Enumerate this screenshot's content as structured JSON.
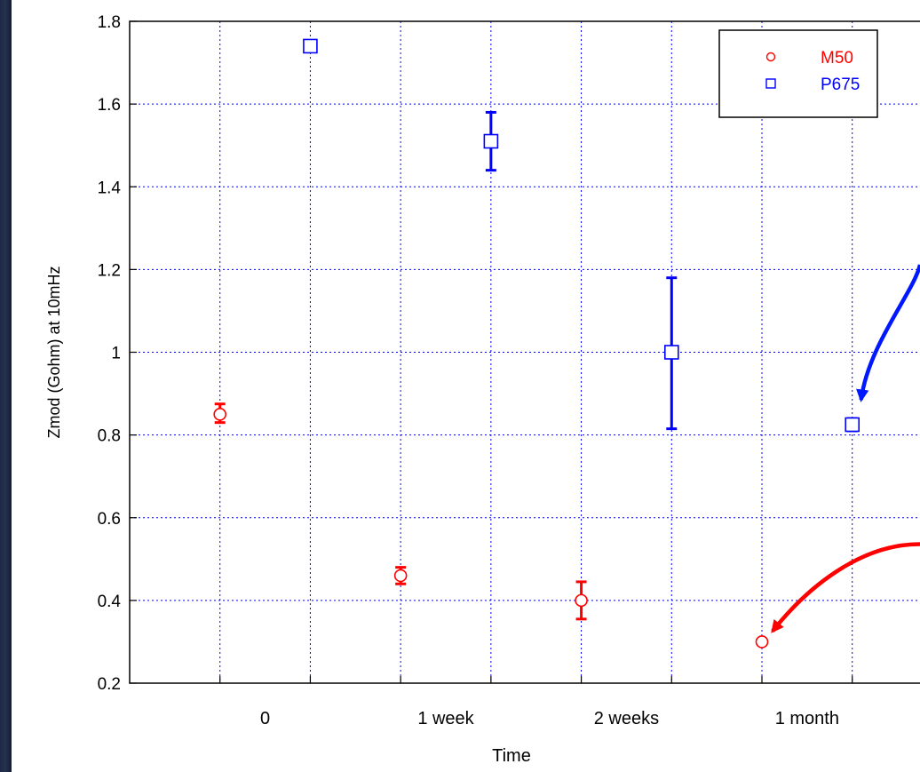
{
  "chart_data": {
    "type": "scatter",
    "xlabel": "Time",
    "ylabel": "Zmod (Gohm) at 10mHz",
    "ylim": [
      0.2,
      1.8
    ],
    "xlim": [
      -1,
      7.75
    ],
    "yticks": [
      0.2,
      0.4,
      0.6,
      0.8,
      1,
      1.2,
      1.4,
      1.6,
      1.8
    ],
    "ytick_labels": [
      "0.2",
      "0.4",
      "0.6",
      "0.8",
      "1",
      "1.2",
      "1.4",
      "1.6",
      "1.8"
    ],
    "x_gridlines": [
      0,
      1,
      2,
      3,
      4,
      5,
      6,
      7
    ],
    "x_tick_labels": [
      {
        "x": 0.5,
        "label": "0"
      },
      {
        "x": 2.5,
        "label": "1 week"
      },
      {
        "x": 4.5,
        "label": "2 weeks"
      },
      {
        "x": 6.5,
        "label": "1 month"
      }
    ],
    "grid": true,
    "legend_position": "top-right",
    "series": [
      {
        "name": "M50",
        "marker": "circle",
        "color": "#ff0000",
        "points": [
          {
            "x": 0,
            "y": 0.85,
            "err_low": 0.83,
            "err_high": 0.875
          },
          {
            "x": 2,
            "y": 0.46,
            "err_low": 0.44,
            "err_high": 0.48
          },
          {
            "x": 4,
            "y": 0.4,
            "err_low": 0.355,
            "err_high": 0.445
          },
          {
            "x": 6,
            "y": 0.3,
            "err_low": 0.3,
            "err_high": 0.3
          }
        ]
      },
      {
        "name": "P675",
        "marker": "square",
        "color": "#0000ff",
        "points": [
          {
            "x": 1,
            "y": 1.74,
            "err_low": 1.74,
            "err_high": 1.74
          },
          {
            "x": 3,
            "y": 1.51,
            "err_low": 1.44,
            "err_high": 1.58
          },
          {
            "x": 5,
            "y": 1.0,
            "err_low": 0.815,
            "err_high": 1.18
          },
          {
            "x": 7,
            "y": 0.825,
            "err_low": 0.81,
            "err_high": 0.84
          }
        ]
      }
    ],
    "annotations": [
      {
        "type": "curved-arrow",
        "color": "#0018ff",
        "target_series": "P675",
        "target_index": 3
      },
      {
        "type": "curved-arrow",
        "color": "#ff0000",
        "target_series": "M50",
        "target_index": 3
      }
    ]
  }
}
